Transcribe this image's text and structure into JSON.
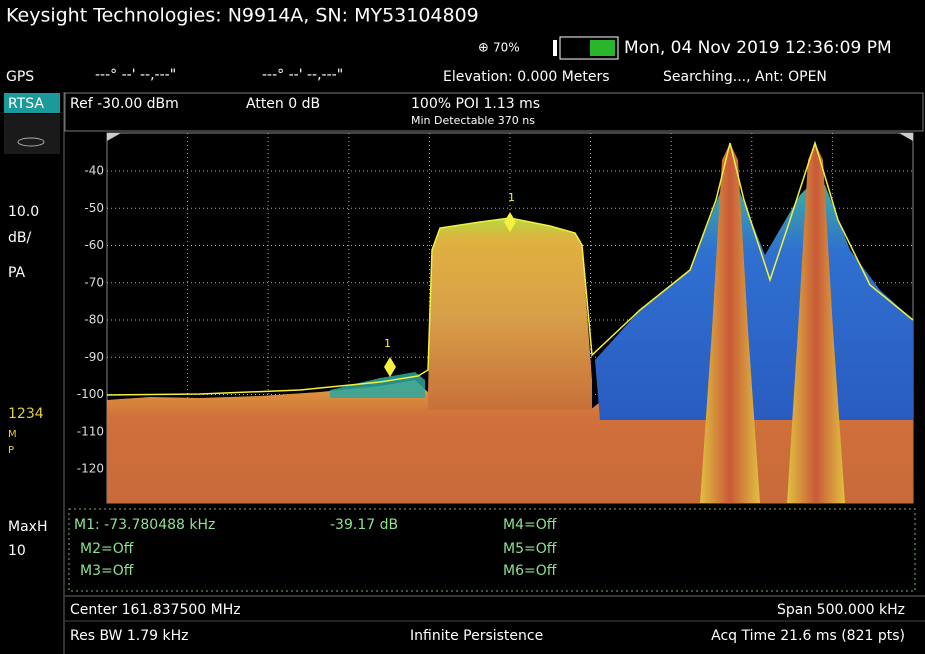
{
  "header": {
    "title": "Keysight Technologies: N9914A, SN: MY53104809",
    "battery": "70%",
    "datetime": "Mon, 04 Nov 2019 12:36:09 PM"
  },
  "gps": {
    "label": "GPS",
    "lat": "---° --' --,---\"",
    "lon": "---° --' --,---\"",
    "elevation": "Elevation: 0.000 Meters",
    "status": "Searching..., Ant: OPEN"
  },
  "side": {
    "mode": "RTSA",
    "scale": "10.0",
    "unit": "dB/",
    "pa": "PA",
    "traces": "1234",
    "m": "M",
    "p": "P",
    "detector": "MaxH",
    "count": "10"
  },
  "settings": {
    "ref": "Ref -30.00 dBm",
    "atten": "Atten 0 dB",
    "poi": "100% POI 1.13 ms",
    "min_detect": "Min Detectable 370 ns"
  },
  "plot": {
    "yticks": [
      -40,
      -50,
      -60,
      -70,
      -80,
      -90,
      -100,
      -110,
      -120
    ],
    "marker1": "1",
    "marker1_delta": "1"
  },
  "markers": {
    "m1": "M1:  -73.780488 kHz",
    "m1_value": "-39.17 dB",
    "m2": "M2=Off",
    "m3": "M3=Off",
    "m4": "M4=Off",
    "m5": "M5=Off",
    "m6": "M6=Off"
  },
  "footer": {
    "center": "Center 161.837500 MHz",
    "span": "Span 500.000 kHz",
    "rbw": "Res BW 1.79 kHz",
    "persistence": "Infinite Persistence",
    "acq": "Acq Time 21.6 ms (821 pts)"
  }
}
